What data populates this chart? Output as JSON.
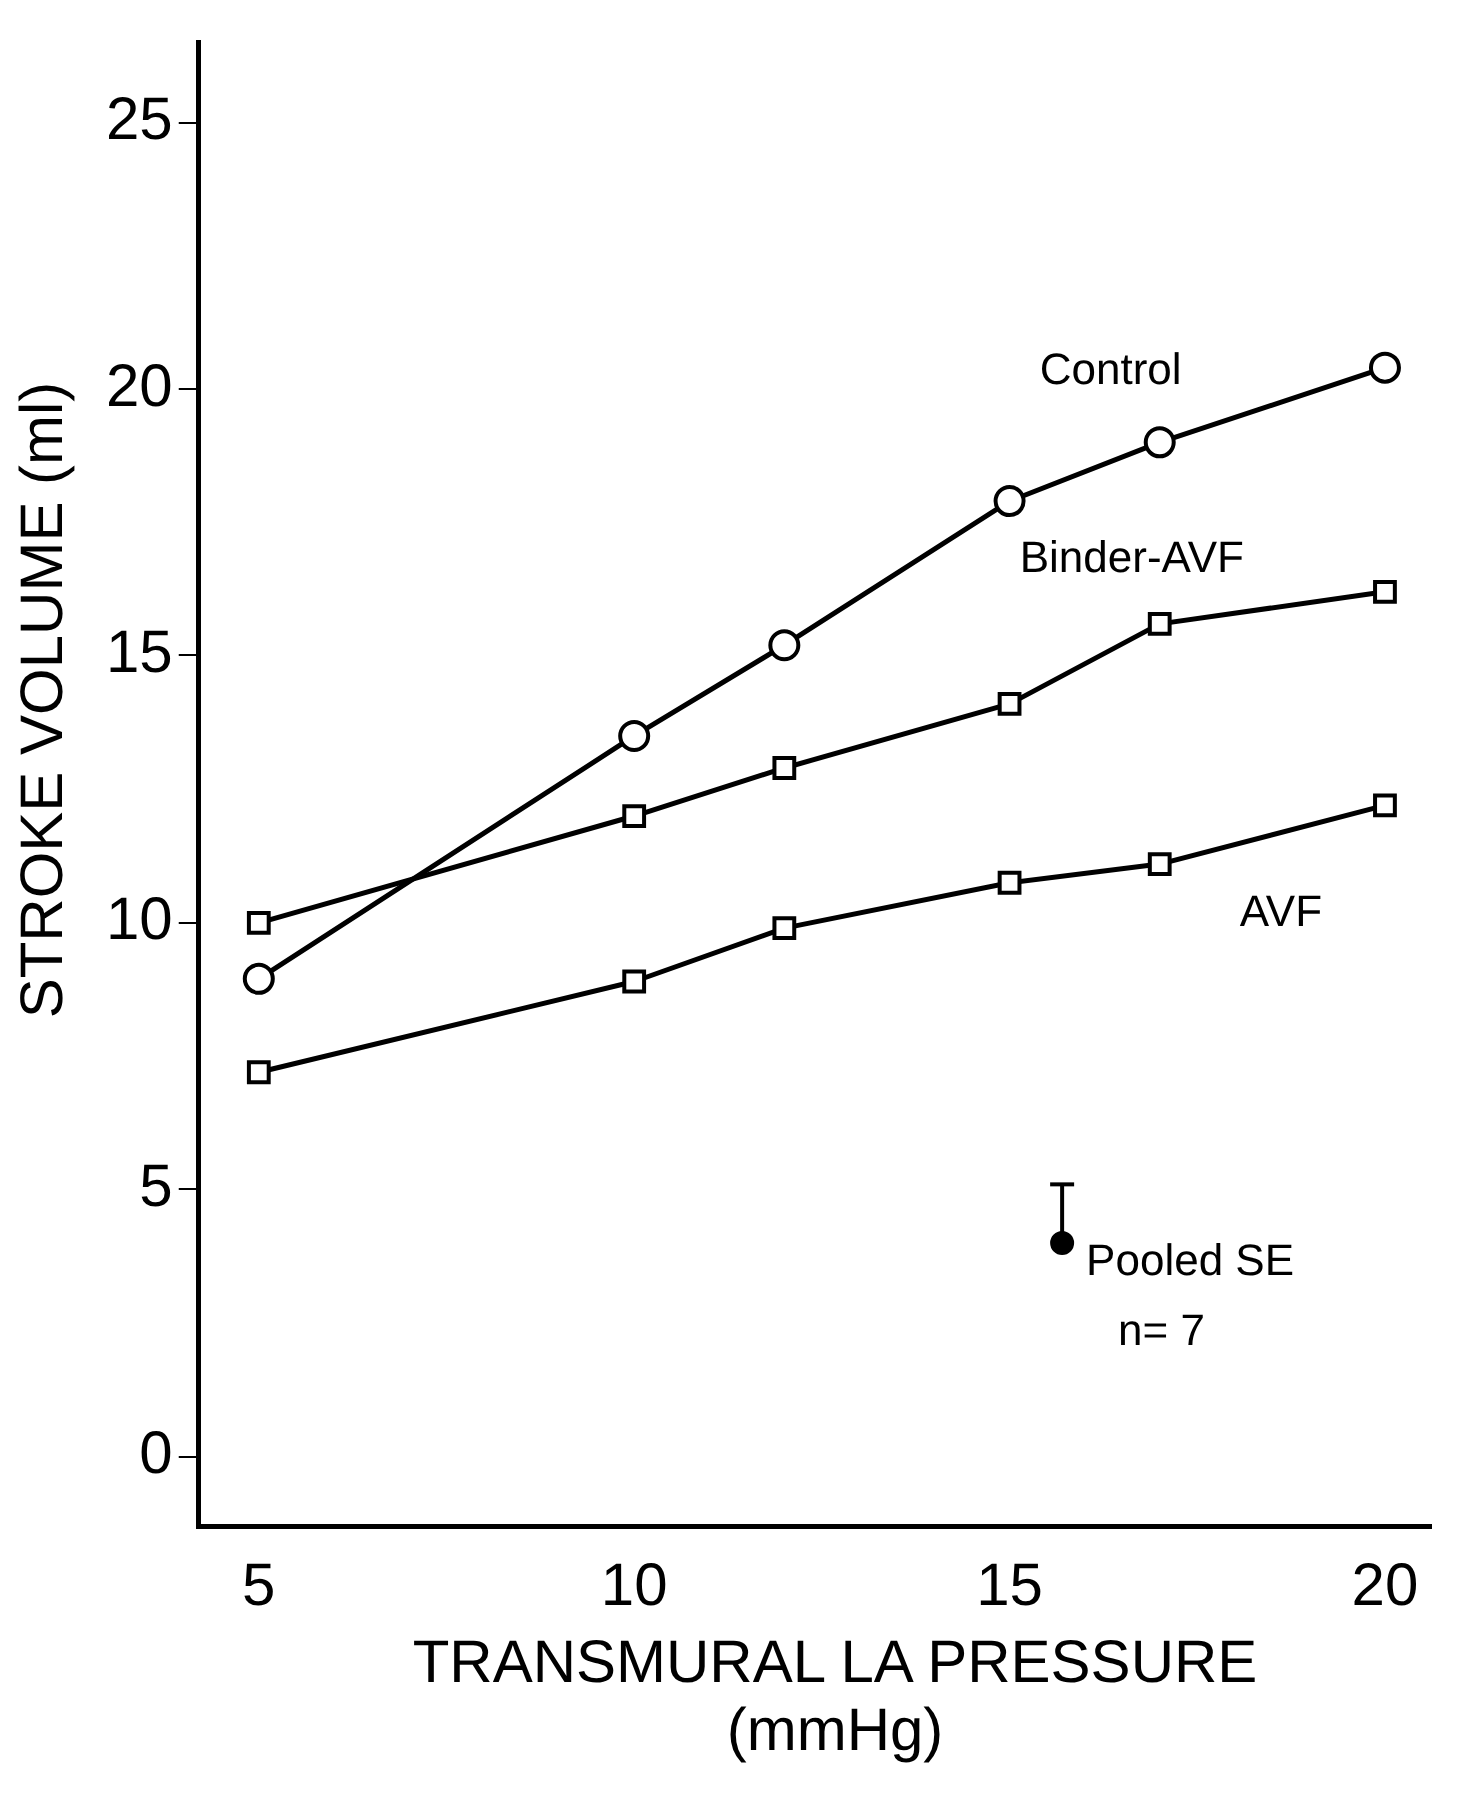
{
  "chart_data": {
    "type": "line",
    "xlabel": "TRANSMURAL LA PRESSURE\n(mmHg)",
    "ylabel": "STROKE VOLUME (ml)",
    "x": [
      5,
      10,
      12,
      15,
      17,
      20
    ],
    "series": [
      {
        "name": "Control",
        "color": "#000000",
        "marker": "circle",
        "values": [
          8.95,
          13.5,
          15.2,
          17.9,
          19.0,
          20.4
        ]
      },
      {
        "name": "Binder-AVF",
        "color": "#000000",
        "marker": "square",
        "values": [
          10.0,
          12.0,
          12.9,
          14.1,
          15.6,
          16.2
        ]
      },
      {
        "name": "AVF",
        "color": "#000000",
        "marker": "square",
        "values": [
          7.2,
          8.9,
          9.9,
          10.75,
          11.1,
          12.2
        ]
      },
      {
        "name": "Pooled SE",
        "type": "scatter",
        "color": "#000000",
        "marker": "circle",
        "x": [
          15.7
        ],
        "values": [
          4.0
        ],
        "errors": [
          [
            4.0,
            5.1
          ]
        ]
      }
    ],
    "annotations": [
      "n= 7"
    ],
    "xlim": [
      4.2,
      20.6
    ],
    "xticks": [
      5,
      10,
      15,
      20
    ],
    "ylim": [
      -1.3,
      26.5
    ],
    "yticks": [
      0,
      5,
      10,
      15,
      20,
      25
    ],
    "grid": false,
    "legend": "bottom right",
    "line_style": "solid"
  }
}
